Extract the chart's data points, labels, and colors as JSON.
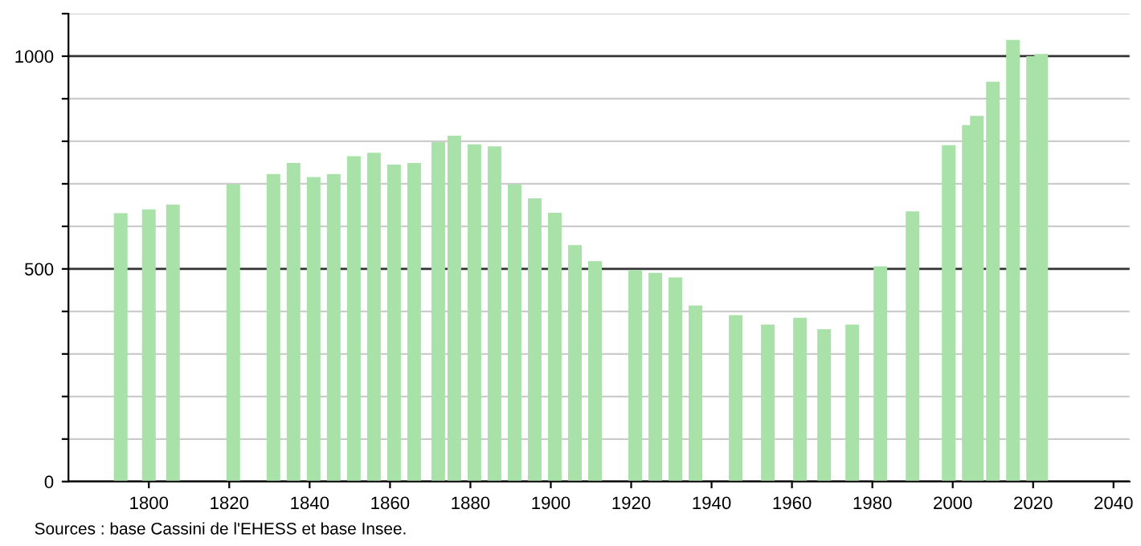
{
  "chart_data": {
    "type": "bar",
    "x": [
      1793,
      1800,
      1806,
      1821,
      1831,
      1836,
      1841,
      1846,
      1851,
      1856,
      1861,
      1866,
      1872,
      1876,
      1881,
      1886,
      1891,
      1896,
      1901,
      1906,
      1911,
      1921,
      1926,
      1931,
      1936,
      1946,
      1954,
      1962,
      1968,
      1975,
      1982,
      1990,
      1999,
      2004,
      2006,
      2010,
      2015,
      2020,
      2022
    ],
    "values": [
      631,
      640,
      651,
      699,
      723,
      749,
      716,
      723,
      765,
      773,
      745,
      749,
      798,
      813,
      793,
      788,
      699,
      666,
      632,
      556,
      518,
      497,
      491,
      480,
      414,
      391,
      369,
      385,
      358,
      369,
      506,
      635,
      791,
      838,
      860,
      940,
      1038,
      1000,
      1005
    ],
    "color": "#a8e2a8",
    "xlim": [
      1780,
      2044
    ],
    "xticks": [
      1800,
      1820,
      1840,
      1860,
      1880,
      1900,
      1920,
      1940,
      1960,
      1980,
      2000,
      2020,
      2040
    ],
    "ylim": [
      0,
      1100
    ],
    "yticks": [
      0,
      {
        "value": 100,
        "label": null
      },
      {
        "value": 200,
        "label": null
      },
      {
        "value": 300,
        "label": null
      },
      {
        "value": 400,
        "label": null
      },
      500,
      {
        "value": 600,
        "label": null
      },
      {
        "value": 700,
        "label": null
      },
      {
        "value": 800,
        "label": null
      },
      {
        "value": 900,
        "label": null
      },
      1000,
      {
        "value": 1100,
        "label": null
      }
    ],
    "grid": "y",
    "annotations": [
      "Sources : base Cassini de l'EHESS et base Insee."
    ]
  }
}
